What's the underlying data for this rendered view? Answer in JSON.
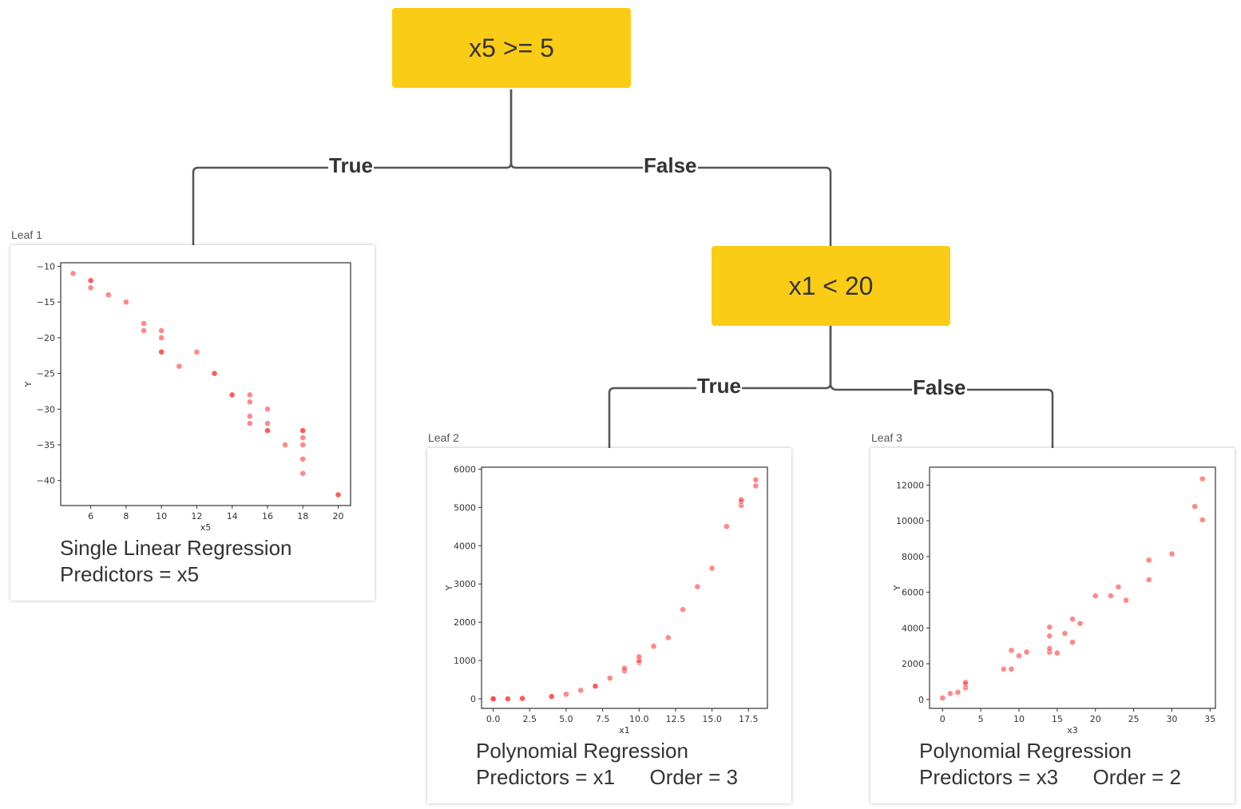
{
  "root": {
    "label": "x5 >= 5"
  },
  "node2": {
    "label": "x1 < 20"
  },
  "branches": {
    "root_true": "True",
    "root_false": "False",
    "node2_true": "True",
    "node2_false": "False"
  },
  "colors": {
    "decision_fill": "#FACC15",
    "point": "#FF3B3B",
    "edge": "#555555"
  },
  "leaves": [
    {
      "caption": "Leaf 1",
      "description": [
        "Single Linear Regression",
        "Predictors = x5"
      ],
      "chart_data": {
        "type": "scatter",
        "xlabel": "x5",
        "ylabel": "Y",
        "xlim": [
          4.3,
          20.7
        ],
        "ylim": [
          -43.5,
          -9.5
        ],
        "xticks": [
          6,
          8,
          10,
          12,
          14,
          16,
          18,
          20
        ],
        "yticks": [
          -10,
          -15,
          -20,
          -25,
          -30,
          -35,
          -40
        ],
        "tick_labels_x": [
          "6",
          "8",
          "10",
          "12",
          "14",
          "16",
          "18",
          "20"
        ],
        "tick_labels_y": [
          "−10",
          "−15",
          "−20",
          "−25",
          "−30",
          "−35",
          "−40"
        ],
        "points": [
          [
            5,
            -11
          ],
          [
            6,
            -12
          ],
          [
            6,
            -12
          ],
          [
            6,
            -13
          ],
          [
            7,
            -14
          ],
          [
            8,
            -15
          ],
          [
            9,
            -18
          ],
          [
            9,
            -19
          ],
          [
            10,
            -19
          ],
          [
            10,
            -20
          ],
          [
            10,
            -22
          ],
          [
            10,
            -22
          ],
          [
            11,
            -24
          ],
          [
            12,
            -22
          ],
          [
            13,
            -25
          ],
          [
            13,
            -25
          ],
          [
            14,
            -28
          ],
          [
            14,
            -28
          ],
          [
            15,
            -28
          ],
          [
            15,
            -29
          ],
          [
            15,
            -31
          ],
          [
            15,
            -32
          ],
          [
            16,
            -30
          ],
          [
            16,
            -32
          ],
          [
            16,
            -33
          ],
          [
            16,
            -33
          ],
          [
            17,
            -35
          ],
          [
            18,
            -33
          ],
          [
            18,
            -33
          ],
          [
            18,
            -34
          ],
          [
            18,
            -35
          ],
          [
            18,
            -37
          ],
          [
            18,
            -39
          ],
          [
            20,
            -42
          ],
          [
            20,
            -42
          ]
        ]
      }
    },
    {
      "caption": "Leaf 2",
      "description": [
        "Polynomial Regression",
        "Predictors = x1      Order = 3"
      ],
      "chart_data": {
        "type": "scatter",
        "xlabel": "x1",
        "ylabel": "Y",
        "xlim": [
          -0.8,
          18.8
        ],
        "ylim": [
          -250,
          6050
        ],
        "xticks": [
          0,
          2.5,
          5,
          7.5,
          10,
          12.5,
          15,
          17.5
        ],
        "yticks": [
          0,
          1000,
          2000,
          3000,
          4000,
          5000,
          6000
        ],
        "tick_labels_x": [
          "0.0",
          "2.5",
          "5.0",
          "7.5",
          "10.0",
          "12.5",
          "15.0",
          "17.5"
        ],
        "tick_labels_y": [
          "0",
          "1000",
          "2000",
          "3000",
          "4000",
          "5000",
          "6000"
        ],
        "points": [
          [
            0,
            0
          ],
          [
            0,
            0
          ],
          [
            0,
            0
          ],
          [
            1,
            0
          ],
          [
            1,
            0
          ],
          [
            2,
            10
          ],
          [
            2,
            10
          ],
          [
            4,
            60
          ],
          [
            4,
            60
          ],
          [
            5,
            120
          ],
          [
            6,
            220
          ],
          [
            7,
            330
          ],
          [
            7,
            330
          ],
          [
            8,
            540
          ],
          [
            9,
            730
          ],
          [
            9,
            800
          ],
          [
            10,
            950
          ],
          [
            10,
            1000
          ],
          [
            10,
            1100
          ],
          [
            11,
            1370
          ],
          [
            12,
            1600
          ],
          [
            13,
            2330
          ],
          [
            14,
            2930
          ],
          [
            15,
            3410
          ],
          [
            16,
            4500
          ],
          [
            17,
            5050
          ],
          [
            17,
            5150
          ],
          [
            17,
            5200
          ],
          [
            18,
            5560
          ],
          [
            18,
            5720
          ]
        ]
      }
    },
    {
      "caption": "Leaf 3",
      "description": [
        "Polynomial Regression",
        "Predictors = x3      Order = 2"
      ],
      "chart_data": {
        "type": "scatter",
        "xlabel": "x3",
        "ylabel": "Y",
        "xlim": [
          -1.7,
          35.7
        ],
        "ylim": [
          -500,
          13000
        ],
        "xticks": [
          0,
          5,
          10,
          15,
          20,
          25,
          30,
          35
        ],
        "yticks": [
          0,
          2000,
          4000,
          6000,
          8000,
          10000,
          12000
        ],
        "tick_labels_x": [
          "0",
          "5",
          "10",
          "15",
          "20",
          "25",
          "30",
          "35"
        ],
        "tick_labels_y": [
          "0",
          "2000",
          "4000",
          "6000",
          "8000",
          "10000",
          "12000"
        ],
        "points": [
          [
            0,
            80
          ],
          [
            1,
            330
          ],
          [
            2,
            400
          ],
          [
            3,
            650
          ],
          [
            3,
            850
          ],
          [
            3,
            950
          ],
          [
            8,
            1700
          ],
          [
            9,
            1700
          ],
          [
            9,
            2750
          ],
          [
            10,
            2450
          ],
          [
            11,
            2650
          ],
          [
            14,
            2650
          ],
          [
            14,
            2850
          ],
          [
            14,
            3550
          ],
          [
            14,
            4050
          ],
          [
            15,
            2600
          ],
          [
            16,
            3700
          ],
          [
            17,
            3200
          ],
          [
            17,
            4500
          ],
          [
            18,
            4250
          ],
          [
            20,
            5800
          ],
          [
            22,
            5800
          ],
          [
            23,
            6300
          ],
          [
            24,
            5550
          ],
          [
            27,
            6700
          ],
          [
            27,
            7800
          ],
          [
            30,
            8150
          ],
          [
            33,
            10800
          ],
          [
            34,
            10050
          ],
          [
            34,
            12350
          ]
        ]
      }
    }
  ]
}
